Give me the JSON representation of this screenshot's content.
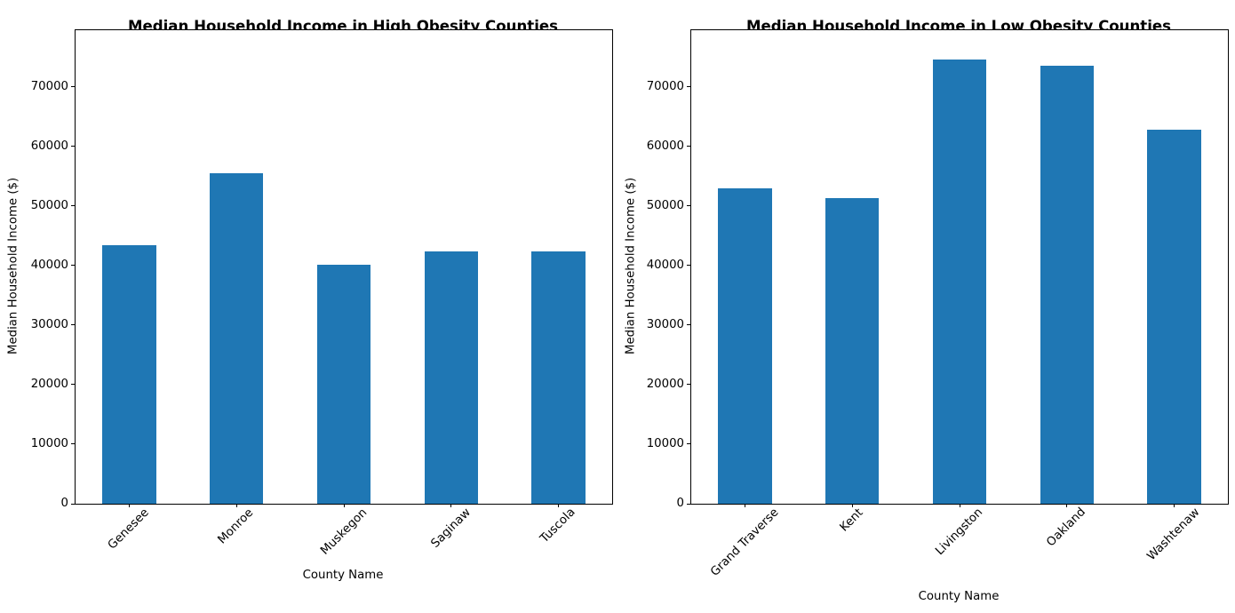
{
  "figure": {
    "background": "#ffffff",
    "bar_color": "#1f77b4"
  },
  "chart_data": [
    {
      "type": "bar",
      "title": "Median Household Income in High Obesity Counties",
      "xlabel": "County Name",
      "ylabel": "Median Household Income ($)",
      "categories": [
        "Genesee",
        "Monroe",
        "Muskegon",
        "Saginaw",
        "Tuscola"
      ],
      "values": [
        43400,
        55500,
        40100,
        42400,
        42400
      ],
      "ylim": [
        0,
        79500
      ],
      "yticks": [
        0,
        10000,
        20000,
        30000,
        40000,
        50000,
        60000,
        70000
      ],
      "bar_color": "#1f77b4",
      "bar_width_fraction": 0.5,
      "xtick_rotation": 45,
      "grid": false,
      "legend": "none"
    },
    {
      "type": "bar",
      "title": "Median Household Income in Low Obesity Counties",
      "xlabel": "County Name",
      "ylabel": "Median Household Income ($)",
      "categories": [
        "Grand Traverse",
        "Kent",
        "Livingston",
        "Oakland",
        "Washtenaw"
      ],
      "values": [
        53000,
        51300,
        74600,
        73600,
        62800
      ],
      "ylim": [
        0,
        79500
      ],
      "yticks": [
        0,
        10000,
        20000,
        30000,
        40000,
        50000,
        60000,
        70000
      ],
      "bar_color": "#1f77b4",
      "bar_width_fraction": 0.5,
      "xtick_rotation": 45,
      "grid": false,
      "legend": "none"
    }
  ]
}
